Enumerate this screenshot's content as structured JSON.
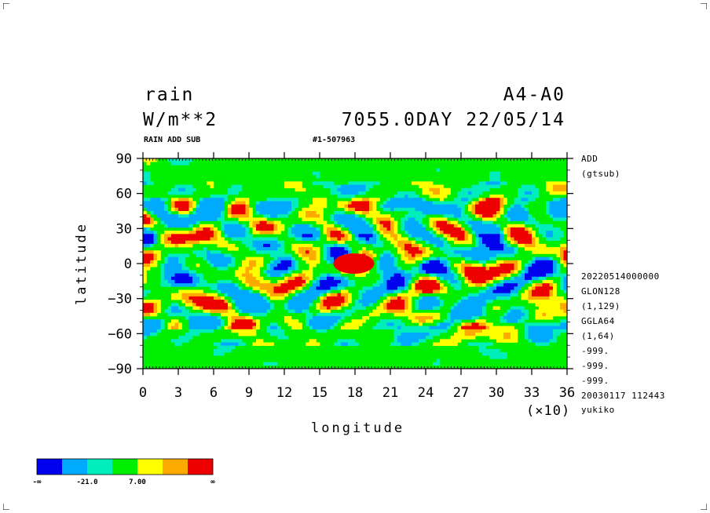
{
  "header": {
    "var_name": "rain",
    "units": "W/m**2",
    "experiment": "A4-A0",
    "time": "7055.0DAY 22/05/14",
    "subtitle_left": "RAIN ADD SUB",
    "subtitle_mid": "#1-507963"
  },
  "side_info": {
    "line1": "ADD",
    "line2": "(gtsub)",
    "lines_lower": [
      "20220514000000",
      "GLON128",
      "(1,129)",
      "GGLA64",
      "(1,64)",
      "-999.",
      "-999.",
      "-999.",
      "20030117 112443",
      "yukiko"
    ]
  },
  "chart_data": {
    "type": "heatmap",
    "title": "rain",
    "xlabel": "longitude",
    "ylabel": "latitude",
    "x_scale_note": "(×10)",
    "xlim": [
      0,
      36
    ],
    "ylim": [
      -90,
      90
    ],
    "x_ticks": [
      "0",
      "3",
      "6",
      "9",
      "12",
      "15",
      "18",
      "21",
      "24",
      "27",
      "30",
      "33",
      "36"
    ],
    "y_ticks": [
      "90",
      "60",
      "30",
      "0",
      "−30",
      "−60",
      "−90"
    ],
    "color_levels": [
      "#0000ee",
      "#00aaff",
      "#00eebb",
      "#00ee00",
      "#ffff00",
      "#ffaa00",
      "#ee0000"
    ],
    "colorbar_labels": [
      "-∞",
      "-21.0",
      "7.00",
      "∞"
    ],
    "grid": false
  }
}
